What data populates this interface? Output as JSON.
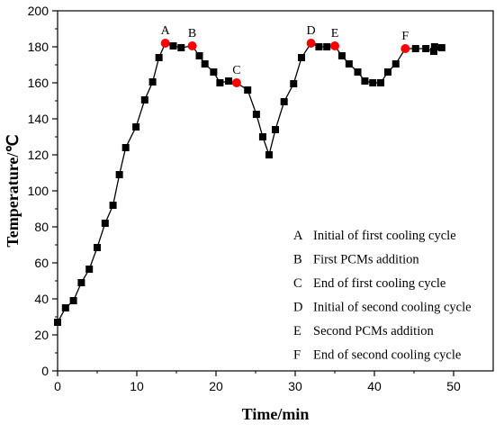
{
  "chart_data": {
    "type": "scatter",
    "xlabel": "Time/min",
    "ylabel": "Temperature/℃",
    "xlim": [
      0,
      55
    ],
    "ylim": [
      0,
      200
    ],
    "x_ticks": [
      0,
      10,
      20,
      30,
      40,
      50
    ],
    "y_ticks": [
      0,
      20,
      40,
      60,
      80,
      100,
      120,
      140,
      160,
      180,
      200
    ],
    "grid": false,
    "colors": {
      "series": "#000000",
      "highlight": "#ff0000"
    },
    "series": [
      {
        "marker": "square",
        "points": [
          [
            0,
            27
          ],
          [
            1,
            35
          ],
          [
            2,
            39
          ],
          [
            3,
            49
          ],
          [
            4,
            56.5
          ],
          [
            5,
            68.5
          ],
          [
            6,
            82
          ],
          [
            7,
            92
          ],
          [
            7.8,
            109
          ],
          [
            8.6,
            124
          ],
          [
            9.9,
            135.5
          ],
          [
            11,
            150.5
          ],
          [
            12,
            160.5
          ],
          [
            12.8,
            174
          ],
          [
            13.6,
            182
          ],
          [
            14.6,
            180.5
          ],
          [
            15.6,
            179.5
          ],
          [
            17,
            180.5
          ],
          [
            17.9,
            175
          ],
          [
            18.6,
            170.5
          ],
          [
            19.7,
            166
          ],
          [
            20.5,
            160
          ],
          [
            21.6,
            161
          ],
          [
            22.6,
            160
          ],
          [
            24,
            156
          ],
          [
            25.1,
            142.5
          ],
          [
            25.9,
            130
          ],
          [
            26.7,
            120
          ],
          [
            27.5,
            134
          ],
          [
            28.6,
            149.5
          ],
          [
            29.8,
            159.5
          ],
          [
            30.8,
            174
          ],
          [
            32,
            182
          ],
          [
            33,
            180
          ],
          [
            34,
            180
          ],
          [
            35,
            180.5
          ],
          [
            35.9,
            175
          ],
          [
            36.8,
            170.5
          ],
          [
            37.9,
            166
          ],
          [
            38.8,
            161
          ],
          [
            39.8,
            160
          ],
          [
            40.8,
            160
          ],
          [
            41.7,
            166
          ],
          [
            42.7,
            170.5
          ],
          [
            43.9,
            179
          ],
          [
            45.2,
            179
          ],
          [
            46.5,
            179
          ],
          [
            47.5,
            177.5
          ],
          [
            47.6,
            180
          ],
          [
            48.5,
            179.5
          ]
        ]
      }
    ],
    "highlights": [
      {
        "label": "A",
        "x": 13.6,
        "y": 182
      },
      {
        "label": "B",
        "x": 17,
        "y": 180.5
      },
      {
        "label": "C",
        "x": 22.6,
        "y": 160
      },
      {
        "label": "D",
        "x": 32,
        "y": 182
      },
      {
        "label": "E",
        "x": 35,
        "y": 180.5
      },
      {
        "label": "F",
        "x": 43.9,
        "y": 179
      }
    ],
    "legend_position": "bottom-right",
    "legend": [
      {
        "key": "A",
        "text": "Initial of first cooling cycle"
      },
      {
        "key": "B",
        "text": "First PCMs addition"
      },
      {
        "key": "C",
        "text": "End of first cooling cycle"
      },
      {
        "key": "D",
        "text": "Initial of second cooling cycle"
      },
      {
        "key": "E",
        "text": "Second PCMs addition"
      },
      {
        "key": "F",
        "text": "End of second cooling cycle"
      }
    ]
  }
}
